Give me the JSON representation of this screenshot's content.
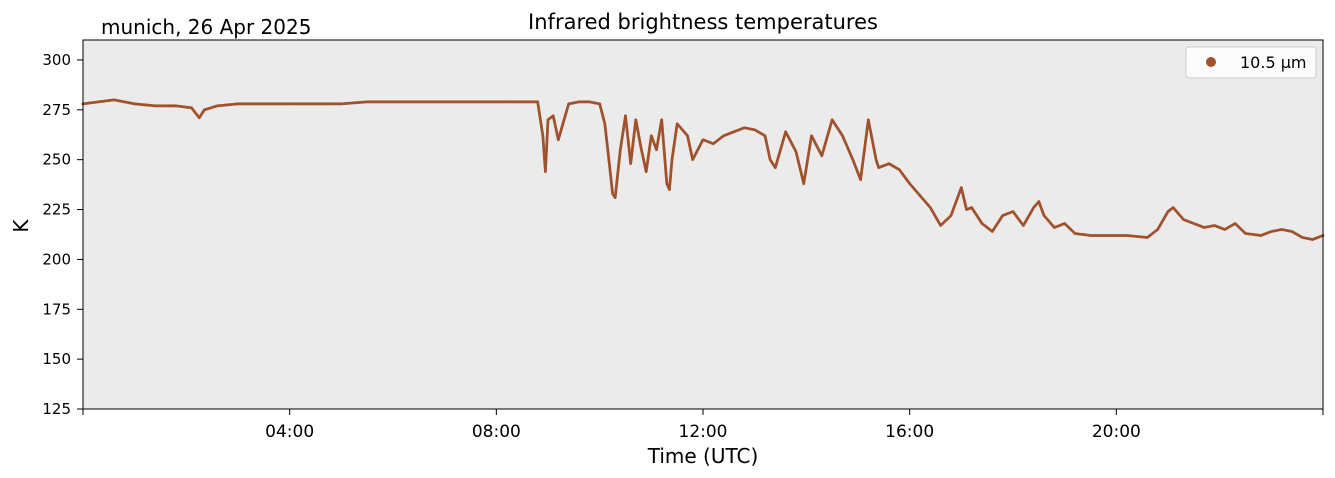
{
  "header": {
    "station_date": "munich, 26 Apr 2025"
  },
  "chart_data": {
    "type": "scatter",
    "title": "Infrared brightness temperatures",
    "xlabel": "Time (UTC)",
    "ylabel": "K",
    "x_unit": "hours UTC",
    "xlim": [
      0,
      24
    ],
    "ylim": [
      125,
      310
    ],
    "x_ticks": [
      {
        "value": 4,
        "label": "04:00"
      },
      {
        "value": 8,
        "label": "08:00"
      },
      {
        "value": 12,
        "label": "12:00"
      },
      {
        "value": 16,
        "label": "16:00"
      },
      {
        "value": 20,
        "label": "20:00"
      }
    ],
    "y_ticks": [
      125,
      150,
      175,
      200,
      225,
      250,
      275,
      300
    ],
    "grid": false,
    "background_color": "#ebebeb",
    "legend_position": "top-right",
    "series": [
      {
        "name": "10.5 µm",
        "color": "#a0522d",
        "marker": "dot",
        "points": [
          [
            0.0,
            278
          ],
          [
            0.3,
            279
          ],
          [
            0.6,
            280
          ],
          [
            1.0,
            278
          ],
          [
            1.4,
            277
          ],
          [
            1.8,
            277
          ],
          [
            2.1,
            276
          ],
          [
            2.25,
            271
          ],
          [
            2.35,
            275
          ],
          [
            2.6,
            277
          ],
          [
            3.0,
            278
          ],
          [
            3.5,
            278
          ],
          [
            4.0,
            278
          ],
          [
            4.5,
            278
          ],
          [
            5.0,
            278
          ],
          [
            5.5,
            279
          ],
          [
            6.0,
            279
          ],
          [
            6.5,
            279
          ],
          [
            7.0,
            279
          ],
          [
            7.5,
            279
          ],
          [
            8.0,
            279
          ],
          [
            8.5,
            279
          ],
          [
            8.8,
            279
          ],
          [
            8.9,
            262
          ],
          [
            8.95,
            244
          ],
          [
            9.0,
            270
          ],
          [
            9.1,
            272
          ],
          [
            9.2,
            260
          ],
          [
            9.4,
            278
          ],
          [
            9.6,
            279
          ],
          [
            9.8,
            279
          ],
          [
            10.0,
            278
          ],
          [
            10.1,
            268
          ],
          [
            10.2,
            245
          ],
          [
            10.25,
            233
          ],
          [
            10.3,
            231
          ],
          [
            10.4,
            255
          ],
          [
            10.5,
            272
          ],
          [
            10.6,
            248
          ],
          [
            10.7,
            270
          ],
          [
            10.8,
            256
          ],
          [
            10.9,
            244
          ],
          [
            11.0,
            262
          ],
          [
            11.1,
            255
          ],
          [
            11.2,
            270
          ],
          [
            11.3,
            238
          ],
          [
            11.35,
            235
          ],
          [
            11.4,
            250
          ],
          [
            11.5,
            268
          ],
          [
            11.7,
            262
          ],
          [
            11.8,
            250
          ],
          [
            12.0,
            260
          ],
          [
            12.2,
            258
          ],
          [
            12.4,
            262
          ],
          [
            12.6,
            264
          ],
          [
            12.8,
            266
          ],
          [
            13.0,
            265
          ],
          [
            13.2,
            262
          ],
          [
            13.3,
            250
          ],
          [
            13.4,
            246
          ],
          [
            13.6,
            264
          ],
          [
            13.8,
            254
          ],
          [
            13.95,
            238
          ],
          [
            14.1,
            262
          ],
          [
            14.3,
            252
          ],
          [
            14.5,
            270
          ],
          [
            14.7,
            262
          ],
          [
            14.9,
            250
          ],
          [
            15.05,
            240
          ],
          [
            15.2,
            270
          ],
          [
            15.35,
            250
          ],
          [
            15.4,
            246
          ],
          [
            15.6,
            248
          ],
          [
            15.8,
            245
          ],
          [
            16.0,
            238
          ],
          [
            16.2,
            232
          ],
          [
            16.4,
            226
          ],
          [
            16.6,
            217
          ],
          [
            16.8,
            222
          ],
          [
            17.0,
            236
          ],
          [
            17.1,
            225
          ],
          [
            17.2,
            226
          ],
          [
            17.4,
            218
          ],
          [
            17.6,
            214
          ],
          [
            17.8,
            222
          ],
          [
            18.0,
            224
          ],
          [
            18.2,
            217
          ],
          [
            18.4,
            226
          ],
          [
            18.5,
            229
          ],
          [
            18.6,
            222
          ],
          [
            18.8,
            216
          ],
          [
            19.0,
            218
          ],
          [
            19.2,
            213
          ],
          [
            19.5,
            212
          ],
          [
            19.8,
            212
          ],
          [
            20.2,
            212
          ],
          [
            20.6,
            211
          ],
          [
            20.8,
            215
          ],
          [
            21.0,
            224
          ],
          [
            21.1,
            226
          ],
          [
            21.3,
            220
          ],
          [
            21.5,
            218
          ],
          [
            21.7,
            216
          ],
          [
            21.9,
            217
          ],
          [
            22.1,
            215
          ],
          [
            22.3,
            218
          ],
          [
            22.5,
            213
          ],
          [
            22.8,
            212
          ],
          [
            23.0,
            214
          ],
          [
            23.2,
            215
          ],
          [
            23.4,
            214
          ],
          [
            23.6,
            211
          ],
          [
            23.8,
            210
          ],
          [
            24.0,
            212
          ]
        ]
      }
    ]
  }
}
